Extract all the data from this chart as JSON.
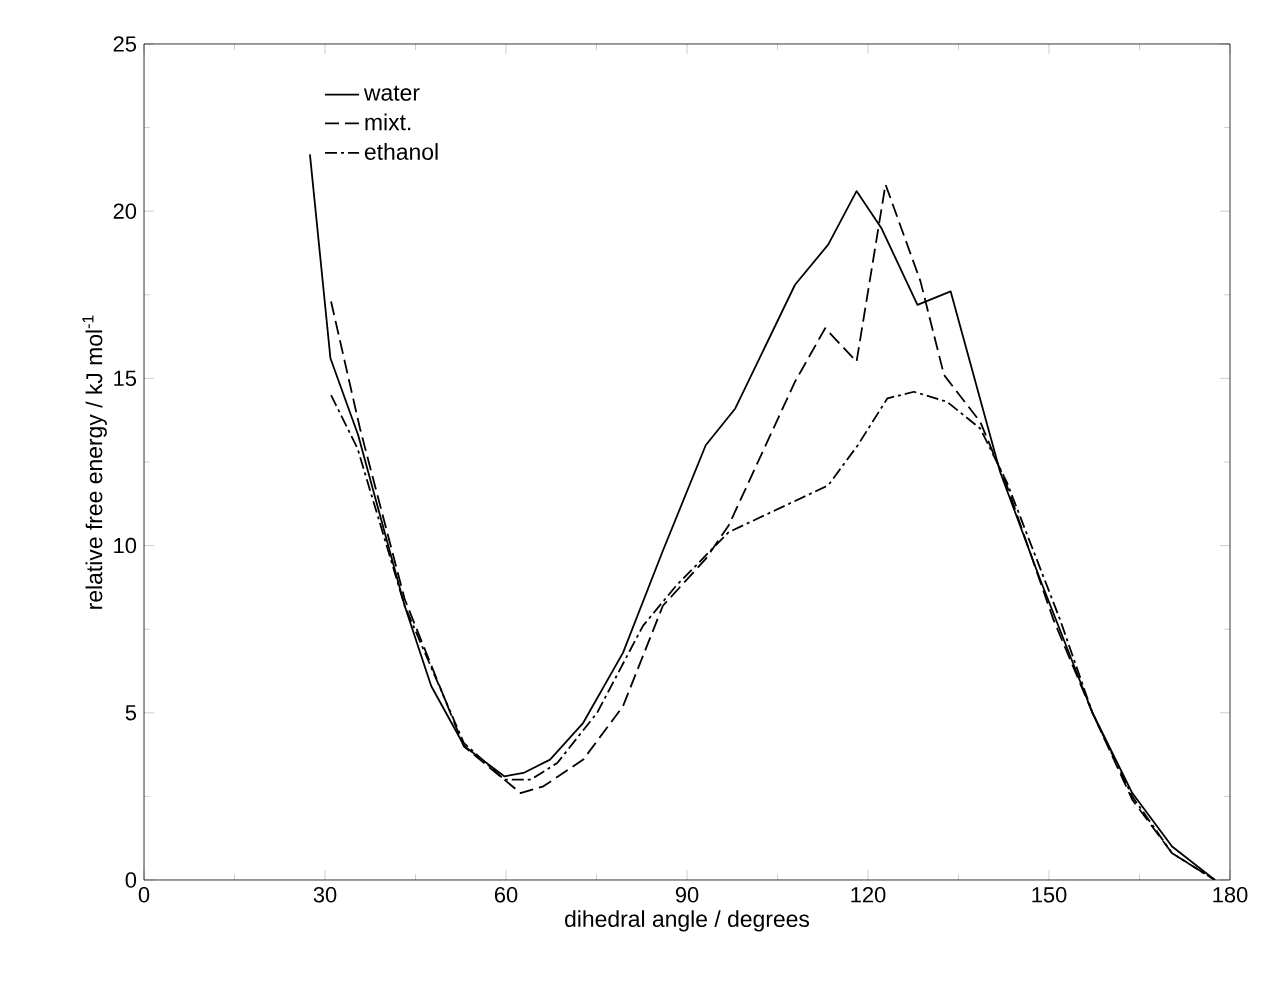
{
  "chart_data": {
    "type": "line",
    "xlabel": "dihedral angle / degrees",
    "ylabel": "relative free energy / kJ mol$^{-1}$",
    "xlim": [
      0,
      180
    ],
    "xticks": [
      0,
      30,
      60,
      90,
      120,
      150,
      180
    ],
    "ylim": [
      0,
      25
    ],
    "yticks": [
      0,
      5,
      10,
      15,
      20,
      25
    ],
    "grid": false,
    "legend": "top left",
    "marker": "none",
    "series": [
      {
        "name": "water",
        "color": "#000000",
        "line_style": "solid",
        "x": [
          27.5,
          30.9,
          35.5,
          43.2,
          47.6,
          53.1,
          59.7,
          62.9,
          67.3,
          72.8,
          79.4,
          85.9,
          93.1,
          98.0,
          107.9,
          113.4,
          118.1,
          122.2,
          128.2,
          133.7,
          141.9,
          148.5,
          157.2,
          163.8,
          170.4,
          177.5
        ],
        "values": [
          21.7,
          15.6,
          13.3,
          8.2,
          5.8,
          4.0,
          3.1,
          3.2,
          3.6,
          4.7,
          6.8,
          9.8,
          13.0,
          14.1,
          17.8,
          19.0,
          20.6,
          19.5,
          17.2,
          17.6,
          12.2,
          9.0,
          5.0,
          2.6,
          1.0,
          0
        ]
      },
      {
        "name": "mixt.",
        "color": "#000000",
        "line_style": "dashed",
        "x": [
          31.0,
          35.8,
          43.2,
          53.0,
          62.4,
          66.2,
          72.8,
          79.4,
          86.0,
          93.1,
          96.9,
          107.9,
          112.9,
          118.1,
          122.9,
          128.7,
          132.6,
          138.6,
          143.0,
          150.7,
          157.2,
          163.8,
          170.4,
          177.5
        ],
        "values": [
          17.3,
          13.5,
          8.4,
          4.0,
          2.6,
          2.8,
          3.6,
          5.2,
          8.2,
          9.6,
          10.6,
          14.9,
          16.5,
          15.5,
          20.8,
          17.9,
          15.1,
          13.7,
          11.8,
          7.8,
          5.0,
          2.4,
          0.8,
          0
        ]
      },
      {
        "name": "ethanol",
        "color": "#000000",
        "line_style": "dashdot",
        "x": [
          31.0,
          35.4,
          43.2,
          53.0,
          59.7,
          64.1,
          68.5,
          75.1,
          82.7,
          88.2,
          96.9,
          113.4,
          118.3,
          123.2,
          127.6,
          133.1,
          138.6,
          143.0,
          151.8,
          157.2,
          163.8,
          170.4,
          177.5
        ],
        "values": [
          14.5,
          12.9,
          8.2,
          4.1,
          3.0,
          3.0,
          3.5,
          5.0,
          7.6,
          8.8,
          10.4,
          11.8,
          13.0,
          14.4,
          14.6,
          14.3,
          13.5,
          11.9,
          7.8,
          5.0,
          2.5,
          0.8,
          0
        ]
      }
    ]
  }
}
